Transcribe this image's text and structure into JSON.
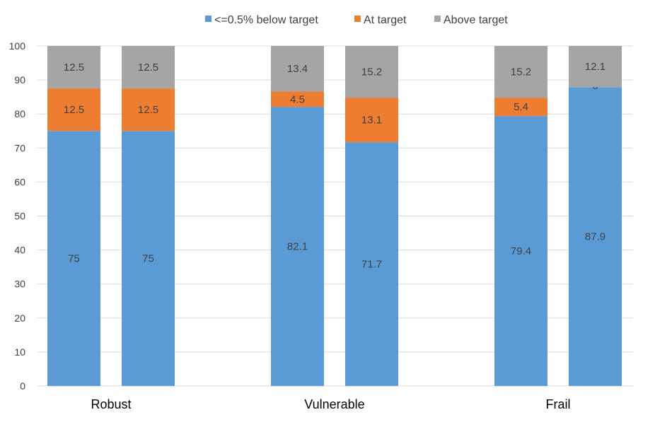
{
  "chart_data": {
    "type": "bar",
    "stacked": true,
    "categories": [
      "Robust",
      "Vulnerable",
      "Frail"
    ],
    "bars_per_category": 2,
    "series": [
      {
        "name": "<=0.5% below target",
        "color": "#5b9bd5",
        "values": [
          [
            75,
            75
          ],
          [
            82.1,
            71.7
          ],
          [
            79.4,
            87.9
          ]
        ]
      },
      {
        "name": "At target",
        "color": "#ed7d31",
        "values": [
          [
            12.5,
            12.5
          ],
          [
            4.5,
            13.1
          ],
          [
            5.4,
            0
          ]
        ]
      },
      {
        "name": "Above target",
        "color": "#a5a5a5",
        "values": [
          [
            12.5,
            12.5
          ],
          [
            13.4,
            15.2
          ],
          [
            15.2,
            12.1
          ]
        ]
      }
    ],
    "ylim": [
      0,
      100
    ],
    "yticks": [
      0,
      10,
      20,
      30,
      40,
      50,
      60,
      70,
      80,
      90,
      100
    ],
    "grid": true,
    "legend_position": "top-center",
    "title": "",
    "xlabel": "",
    "ylabel": ""
  }
}
